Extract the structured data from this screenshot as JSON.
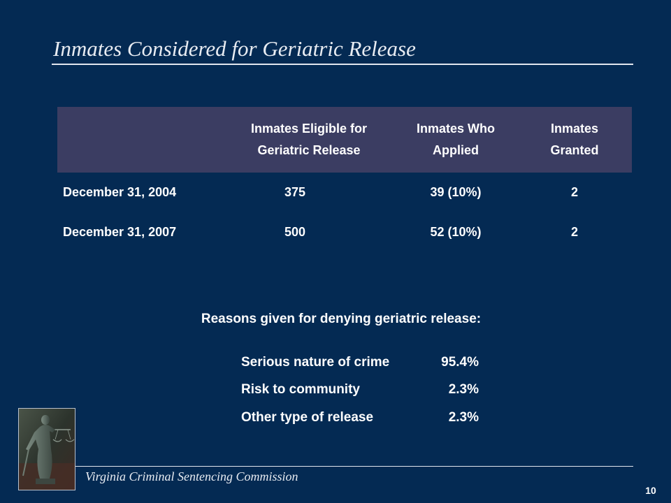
{
  "title": "Inmates Considered for Geriatric Release",
  "table": {
    "headers": [
      "",
      "Inmates Eligible for Geriatric Release",
      "Inmates Who Applied",
      "Inmates Granted"
    ],
    "rows": [
      {
        "date": "December 31, 2004",
        "eligible": "375",
        "applied": "39  (10%)",
        "granted": "2"
      },
      {
        "date": "December 31, 2007",
        "eligible": "500",
        "applied": "52  (10%)",
        "granted": "2"
      }
    ]
  },
  "reasons": {
    "heading": "Reasons given for denying geriatric release:",
    "items": [
      {
        "label": "Serious nature of crime",
        "value": "95.4%"
      },
      {
        "label": "Risk to community",
        "value": "2.3%"
      },
      {
        "label": "Other type of release",
        "value": "2.3%"
      }
    ]
  },
  "footer": {
    "organization": "Virginia Criminal Sentencing Commission",
    "page_number": "10"
  },
  "colors": {
    "background": "#042a53",
    "header_fill": "#3b3d62",
    "text": "#ffffff"
  }
}
